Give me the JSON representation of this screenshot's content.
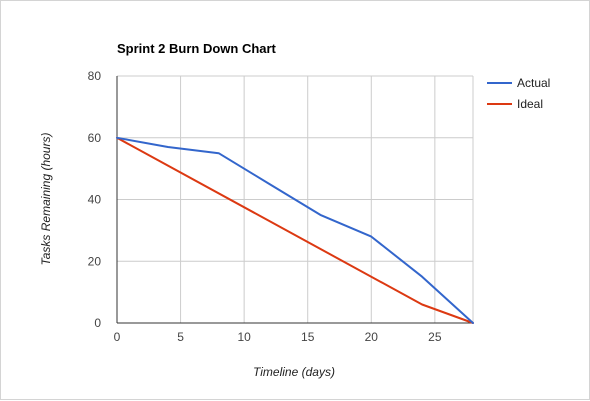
{
  "chart_data": {
    "type": "line",
    "title": "Sprint 2 Burn Down Chart",
    "xlabel": "Timeline (days)",
    "ylabel": "Tasks Remaining (hours)",
    "xlim": [
      0,
      28
    ],
    "ylim": [
      0,
      80
    ],
    "xticks": [
      0,
      5,
      10,
      15,
      20,
      25
    ],
    "yticks": [
      0,
      20,
      40,
      60,
      80
    ],
    "grid": true,
    "legend_position": "right",
    "series": [
      {
        "name": "Actual",
        "color": "#3366cc",
        "points": [
          [
            0,
            60
          ],
          [
            4,
            57
          ],
          [
            8,
            55
          ],
          [
            12,
            45
          ],
          [
            16,
            35
          ],
          [
            20,
            28
          ],
          [
            24,
            15
          ],
          [
            28,
            0
          ]
        ]
      },
      {
        "name": "Ideal",
        "color": "#dc3912",
        "points": [
          [
            0,
            60
          ],
          [
            24,
            6
          ],
          [
            28,
            0
          ]
        ]
      }
    ]
  }
}
